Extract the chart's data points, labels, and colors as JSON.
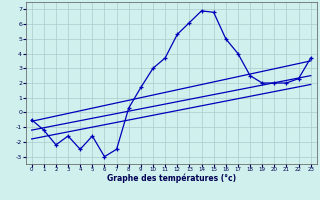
{
  "xlabel": "Graphe des températures (°c)",
  "xlim": [
    -0.5,
    23.5
  ],
  "ylim": [
    -3.5,
    7.5
  ],
  "xticks": [
    0,
    1,
    2,
    3,
    4,
    5,
    6,
    7,
    8,
    9,
    10,
    11,
    12,
    13,
    14,
    15,
    16,
    17,
    18,
    19,
    20,
    21,
    22,
    23
  ],
  "yticks": [
    -3,
    -2,
    -1,
    0,
    1,
    2,
    3,
    4,
    5,
    6,
    7
  ],
  "background_color": "#cff0ec",
  "grid_color": "#aacccc",
  "line_color": "#0000bb",
  "temp_data": [
    [
      0,
      -0.5
    ],
    [
      1,
      -1.2
    ],
    [
      2,
      -2.2
    ],
    [
      3,
      -1.6
    ],
    [
      4,
      -2.5
    ],
    [
      5,
      -1.6
    ],
    [
      6,
      -3.0
    ],
    [
      7,
      -2.5
    ],
    [
      8,
      0.3
    ],
    [
      9,
      1.7
    ],
    [
      10,
      3.0
    ],
    [
      11,
      3.7
    ],
    [
      12,
      5.3
    ],
    [
      13,
      6.1
    ],
    [
      14,
      6.9
    ],
    [
      15,
      6.8
    ],
    [
      16,
      5.0
    ],
    [
      17,
      4.0
    ],
    [
      18,
      2.5
    ],
    [
      19,
      2.0
    ],
    [
      20,
      2.0
    ],
    [
      21,
      2.0
    ],
    [
      22,
      2.3
    ],
    [
      23,
      3.7
    ]
  ],
  "reg_lines": [
    {
      "x0": 0,
      "y0": -0.6,
      "x1": 23,
      "y1": 3.5
    },
    {
      "x0": 0,
      "y0": -1.2,
      "x1": 23,
      "y1": 2.5
    },
    {
      "x0": 0,
      "y0": -1.8,
      "x1": 23,
      "y1": 1.9
    }
  ]
}
